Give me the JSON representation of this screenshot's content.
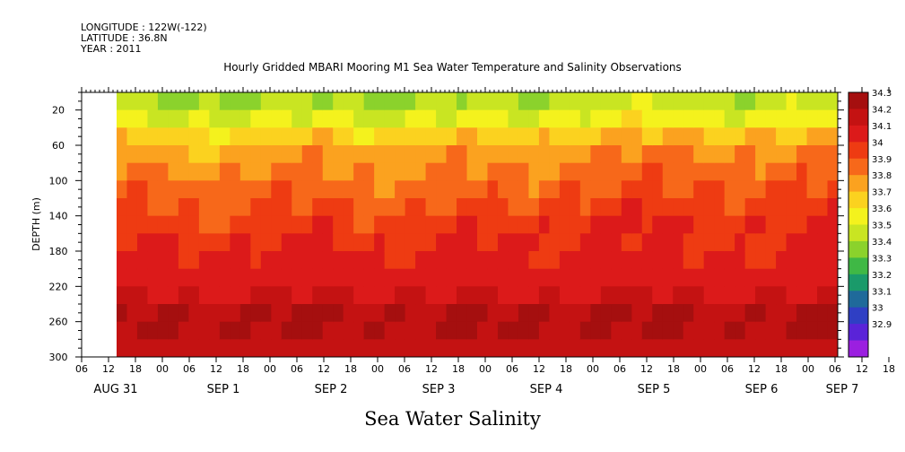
{
  "meta": {
    "longitude": "LONGITUDE : 122W(-122)",
    "latitude": "LATITUDE : 36.8N",
    "year": "YEAR : 2011"
  },
  "variable_label": "Sea Water Salinity",
  "chart_data": {
    "type": "heatmap",
    "title": "Hourly Gridded MBARI Mooring M1 Sea Water Temperature and Salinity Observations",
    "ylabel": "DEPTH (m)",
    "xlabel": "",
    "y_reversed": true,
    "ylim": [
      300,
      0
    ],
    "y_ticks": [
      20,
      60,
      100,
      140,
      180,
      220,
      260,
      300
    ],
    "x_hour_labels": [
      "06",
      "12",
      "18",
      "00",
      "06",
      "12",
      "18",
      "00",
      "06",
      "12",
      "18",
      "00",
      "06",
      "12",
      "18",
      "00",
      "06",
      "12",
      "18",
      "00",
      "06",
      "12",
      "18",
      "00",
      "06",
      "12",
      "18",
      "00",
      "06",
      "12",
      "18",
      "00",
      "06"
    ],
    "x_date_labels": [
      {
        "label": "AUG 31",
        "hour_index": 1
      },
      {
        "label": "SEP  1",
        "hour_index": 5
      },
      {
        "label": "SEP  2",
        "hour_index": 9
      },
      {
        "label": "SEP  3",
        "hour_index": 13
      },
      {
        "label": "SEP  4",
        "hour_index": 17
      },
      {
        "label": "SEP  5",
        "hour_index": 21
      },
      {
        "label": "SEP  6",
        "hour_index": 25
      },
      {
        "label": "SEP  7",
        "hour_index": 28
      }
    ],
    "colorbar": {
      "levels": [
        "34.3",
        "34.2",
        "34.1",
        "34",
        "33.9",
        "33.8",
        "33.7",
        "33.6",
        "33.5",
        "33.4",
        "33.3",
        "33.2",
        "33.1",
        "33",
        "32.9"
      ],
      "colors": [
        "#a50f0f",
        "#c41212",
        "#dc1a1a",
        "#ee3b12",
        "#f7681a",
        "#fba21f",
        "#fbd21f",
        "#f4f21d",
        "#c9e522",
        "#8bd22c",
        "#3fb845",
        "#1a9a6a",
        "#1f6a9a",
        "#2f3fc4",
        "#5a23d8",
        "#9b1fe0"
      ]
    },
    "salinity_profile": [
      {
        "depth": 10,
        "value": 33.5
      },
      {
        "depth": 30,
        "value": 33.6
      },
      {
        "depth": 50,
        "value": 33.75
      },
      {
        "depth": 70,
        "value": 33.85
      },
      {
        "depth": 90,
        "value": 33.9
      },
      {
        "depth": 110,
        "value": 33.95
      },
      {
        "depth": 130,
        "value": 34.0
      },
      {
        "depth": 150,
        "value": 34.05
      },
      {
        "depth": 170,
        "value": 34.1
      },
      {
        "depth": 190,
        "value": 34.12
      },
      {
        "depth": 210,
        "value": 34.15
      },
      {
        "depth": 230,
        "value": 34.2
      },
      {
        "depth": 250,
        "value": 34.3
      },
      {
        "depth": 270,
        "value": 34.3
      },
      {
        "depth": 290,
        "value": 34.25
      }
    ]
  }
}
